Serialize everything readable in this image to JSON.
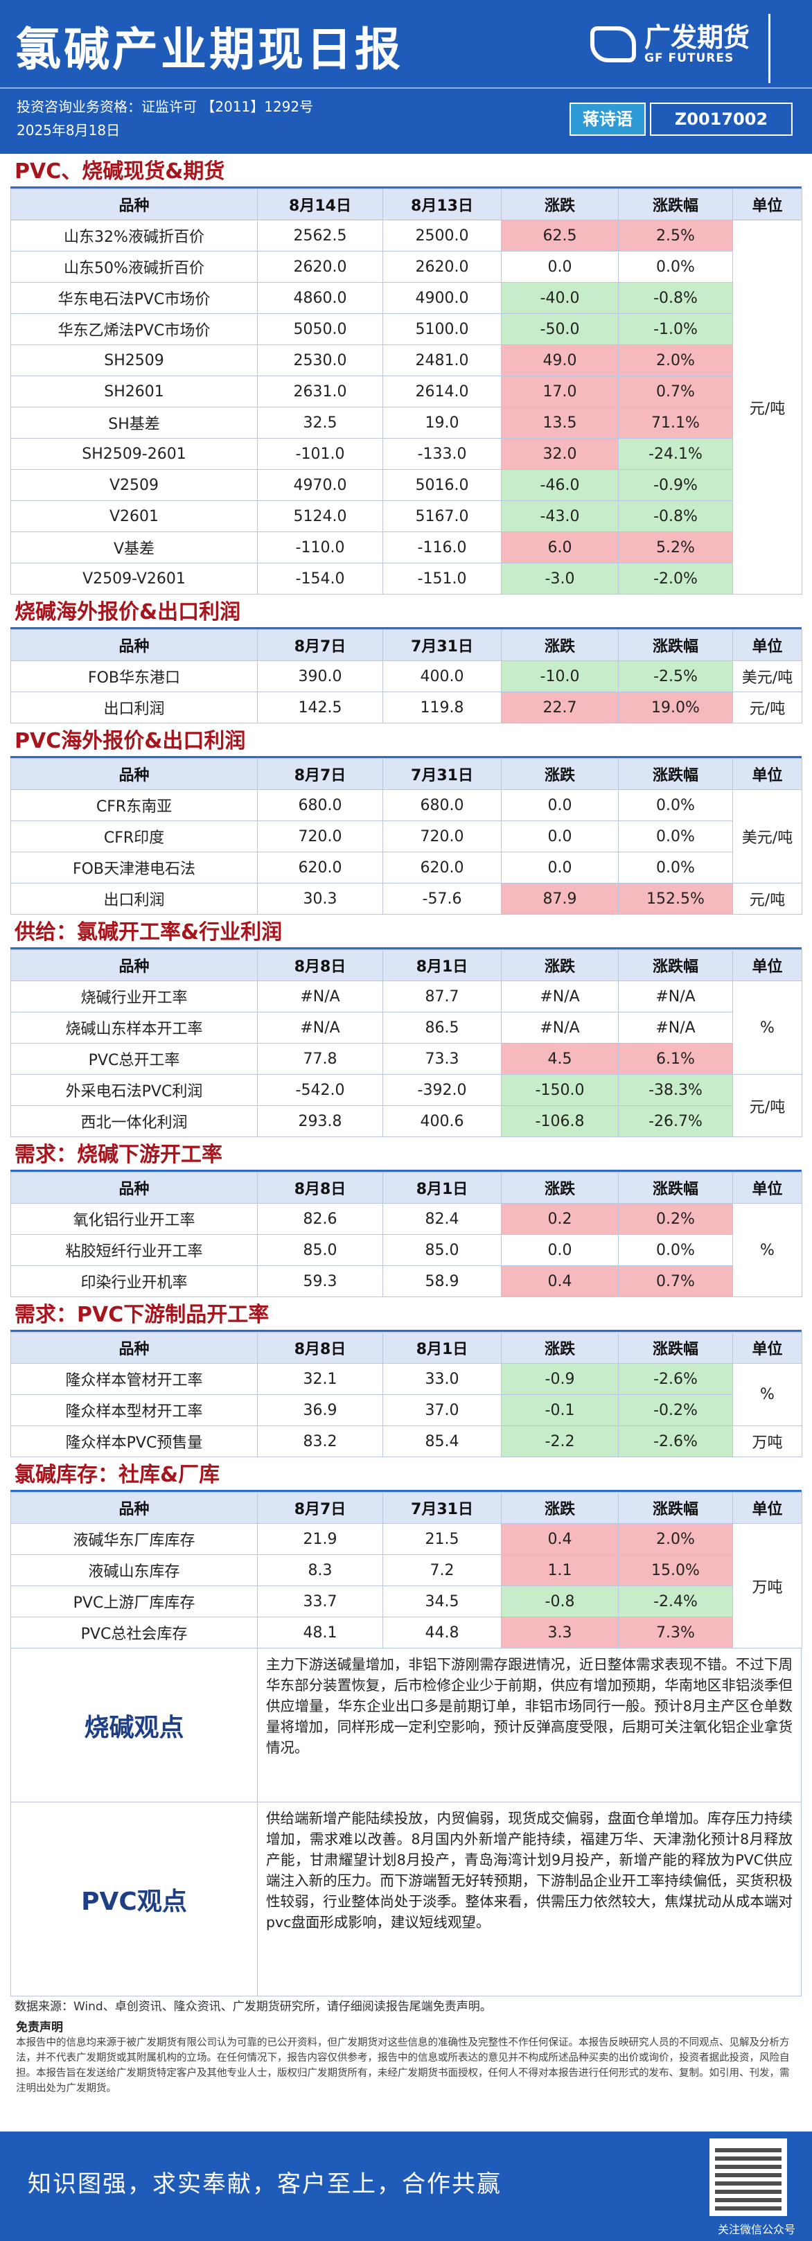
{
  "header": {
    "title": "氯碱产业期现日报",
    "logo_cn": "广发期货",
    "logo_en": "GF FUTURES",
    "license": "投资咨询业务资格：证监许可 【2011】1292号",
    "date": "2025年8月18日",
    "analyst": "蒋诗语",
    "analyst_id": "Z0017002"
  },
  "sections": [
    {
      "title": "PVC、烧碱现货&期货",
      "columns": [
        "品种",
        "8月14日",
        "8月13日",
        "涨跌",
        "涨跌幅",
        "单位"
      ],
      "groups": [
        {
          "unit": "元/吨",
          "rows": [
            [
              "山东32%液碱折百价",
              "2562.5",
              "2500.0",
              "62.5",
              "2.5%"
            ],
            [
              "山东50%液碱折百价",
              "2620.0",
              "2620.0",
              "0.0",
              "0.0%"
            ],
            [
              "华东电石法PVC市场价",
              "4860.0",
              "4900.0",
              "-40.0",
              "-0.8%"
            ],
            [
              "华东乙烯法PVC市场价",
              "5050.0",
              "5100.0",
              "-50.0",
              "-1.0%"
            ],
            [
              "SH2509",
              "2530.0",
              "2481.0",
              "49.0",
              "2.0%"
            ],
            [
              "SH2601",
              "2631.0",
              "2614.0",
              "17.0",
              "0.7%"
            ],
            [
              "SH基差",
              "32.5",
              "19.0",
              "13.5",
              "71.1%"
            ],
            [
              "SH2509-2601",
              "-101.0",
              "-133.0",
              "32.0",
              "-24.1%"
            ],
            [
              "V2509",
              "4970.0",
              "5016.0",
              "-46.0",
              "-0.9%"
            ],
            [
              "V2601",
              "5124.0",
              "5167.0",
              "-43.0",
              "-0.8%"
            ],
            [
              "V基差",
              "-110.0",
              "-116.0",
              "6.0",
              "5.2%"
            ],
            [
              "V2509-V2601",
              "-154.0",
              "-151.0",
              "-3.0",
              "-2.0%"
            ]
          ]
        }
      ]
    },
    {
      "title": "烧碱海外报价&出口利润",
      "columns": [
        "品种",
        "8月7日",
        "7月31日",
        "涨跌",
        "涨跌幅",
        "单位"
      ],
      "groups": [
        {
          "unit": "美元/吨",
          "rows": [
            [
              "FOB华东港口",
              "390.0",
              "400.0",
              "-10.0",
              "-2.5%"
            ]
          ]
        },
        {
          "unit": "元/吨",
          "rows": [
            [
              "出口利润",
              "142.5",
              "119.8",
              "22.7",
              "19.0%"
            ]
          ]
        }
      ]
    },
    {
      "title": "PVC海外报价&出口利润",
      "columns": [
        "品种",
        "8月7日",
        "7月31日",
        "涨跌",
        "涨跌幅",
        "单位"
      ],
      "groups": [
        {
          "unit": "美元/吨",
          "rows": [
            [
              "CFR东南亚",
              "680.0",
              "680.0",
              "0.0",
              "0.0%"
            ],
            [
              "CFR印度",
              "720.0",
              "720.0",
              "0.0",
              "0.0%"
            ],
            [
              "FOB天津港电石法",
              "620.0",
              "620.0",
              "0.0",
              "0.0%"
            ]
          ]
        },
        {
          "unit": "元/吨",
          "rows": [
            [
              "出口利润",
              "30.3",
              "-57.6",
              "87.9",
              "152.5%"
            ]
          ]
        }
      ]
    },
    {
      "title": "供给：氯碱开工率&行业利润",
      "columns": [
        "品种",
        "8月8日",
        "8月1日",
        "涨跌",
        "涨跌幅",
        "单位"
      ],
      "groups": [
        {
          "unit": "%",
          "rows": [
            [
              "烧碱行业开工率",
              "#N/A",
              "87.7",
              "#N/A",
              "#N/A"
            ],
            [
              "烧碱山东样本开工率",
              "#N/A",
              "86.5",
              "#N/A",
              "#N/A"
            ],
            [
              "PVC总开工率",
              "77.8",
              "73.3",
              "4.5",
              "6.1%"
            ]
          ]
        },
        {
          "unit": "元/吨",
          "rows": [
            [
              "外采电石法PVC利润",
              "-542.0",
              "-392.0",
              "-150.0",
              "-38.3%"
            ],
            [
              "西北一体化利润",
              "293.8",
              "400.6",
              "-106.8",
              "-26.7%"
            ]
          ]
        }
      ]
    },
    {
      "title": "需求：烧碱下游开工率",
      "columns": [
        "品种",
        "8月8日",
        "8月1日",
        "涨跌",
        "涨跌幅",
        "单位"
      ],
      "groups": [
        {
          "unit": "%",
          "rows": [
            [
              "氧化铝行业开工率",
              "82.6",
              "82.4",
              "0.2",
              "0.2%"
            ],
            [
              "粘胶短纤行业开工率",
              "85.0",
              "85.0",
              "0.0",
              "0.0%"
            ],
            [
              "印染行业开机率",
              "59.3",
              "58.9",
              "0.4",
              "0.7%"
            ]
          ]
        }
      ]
    },
    {
      "title": "需求：PVC下游制品开工率",
      "columns": [
        "品种",
        "8月8日",
        "8月1日",
        "涨跌",
        "涨跌幅",
        "单位"
      ],
      "groups": [
        {
          "unit": "%",
          "rows": [
            [
              "隆众样本管材开工率",
              "32.1",
              "33.0",
              "-0.9",
              "-2.6%"
            ],
            [
              "隆众样本型材开工率",
              "36.9",
              "37.0",
              "-0.1",
              "-0.2%"
            ]
          ]
        },
        {
          "unit": "万吨",
          "rows": [
            [
              "隆众样本PVC预售量",
              "83.2",
              "85.4",
              "-2.2",
              "-2.6%"
            ]
          ]
        }
      ]
    },
    {
      "title": "氯碱库存：社库&厂库",
      "columns": [
        "品种",
        "8月7日",
        "7月31日",
        "涨跌",
        "涨跌幅",
        "单位"
      ],
      "groups": [
        {
          "unit": "万吨",
          "rows": [
            [
              "液碱华东厂库库存",
              "21.9",
              "21.5",
              "0.4",
              "2.0%"
            ],
            [
              "液碱山东库存",
              "8.3",
              "7.2",
              "1.1",
              "15.0%"
            ],
            [
              "PVC上游厂库库存",
              "33.7",
              "34.5",
              "-0.8",
              "-2.4%"
            ],
            [
              "PVC总社会库存",
              "48.1",
              "44.8",
              "3.3",
              "7.3%"
            ]
          ]
        }
      ]
    }
  ],
  "views": [
    {
      "label": "烧碱观点",
      "text": "主力下游送碱量增加，非铝下游刚需存跟进情况，近日整体需求表现不错。不过下周华东部分装置恢复，后市检修企业少于前期，供应有增加预期，华南地区非铝淡季但供应增量，华东企业出口多是前期订单，非铝市场同行一般。预计8月主产区仓单数量将增加，同样形成一定利空影响，预计反弹高度受限，后期可关注氧化铝企业拿货情况。"
    },
    {
      "label": "PVC观点",
      "text": "供给端新增产能陆续投放，内贸偏弱，现货成交偏弱，盘面仓单增加。库存压力持续增加，需求难以改善。8月国内外新增产能持续，福建万华、天津渤化预计8月释放产能，甘肃耀望计划8月投产，青岛海湾计划9月投产，新增产能的释放为PVC供应端注入新的压力。而下游端暂无好转预期，下游制品企业开工率持续偏低，买货积极性较弱，行业整体尚处于淡季。整体来看，供需压力依然较大，焦煤扰动从成本端对pvc盘面形成影响，建议短线观望。"
    }
  ],
  "source": "数据来源：Wind、卓创资讯、隆众资讯、广发期货研究所，请仔细阅读报告尾端免责声明。",
  "disclaimer": {
    "title": "免责声明",
    "text": "本报告中的信息均来源于被广发期货有限公司认为可靠的已公开资料，但广发期货对这些信息的准确性及完整性不作任何保证。本报告反映研究人员的不同观点、见解及分析方法，并不代表广发期货或其附属机构的立场。在任何情况下，报告内容仅供参考，报告中的信息或所表达的意见并不构成所述品种买卖的出价或询价，投资者据此投资，风险自担。本报告旨在发送给广发期货特定客户及其他专业人士，版权归广发期货所有，未经广发期货书面授权，任何人不得对本报告进行任何形式的发布、复制。如引用、刊发，需注明出处为广发期货。"
  },
  "footer": {
    "slogan": "知识图强，求实奉献，客户至上，合作共赢",
    "qr_caption": "关注微信公众号"
  }
}
